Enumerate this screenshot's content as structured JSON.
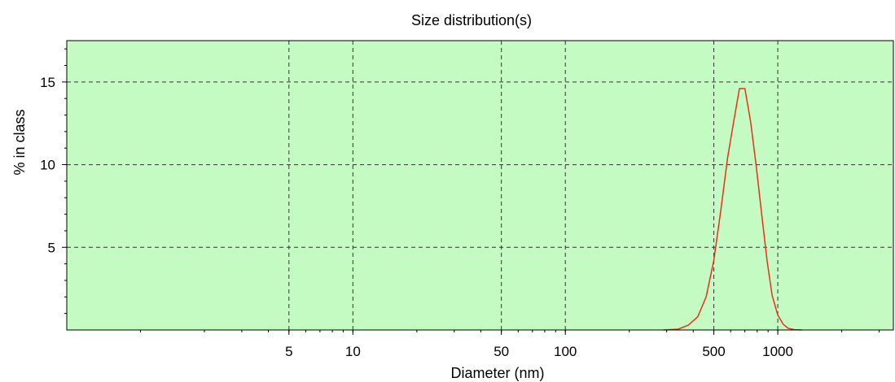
{
  "chart_data": {
    "type": "line",
    "title": "Size distribution(s)",
    "xlabel": "Diameter (nm)",
    "ylabel": "% in class",
    "x_scale": "log",
    "xlim": [
      0.45,
      3500
    ],
    "ylim": [
      0,
      17.5
    ],
    "x_ticks": [
      {
        "value": 5,
        "label": "5"
      },
      {
        "value": 10,
        "label": "10"
      },
      {
        "value": 50,
        "label": "50"
      },
      {
        "value": 100,
        "label": "100"
      },
      {
        "value": 500,
        "label": "500"
      },
      {
        "value": 1000,
        "label": "1000"
      }
    ],
    "y_ticks": [
      {
        "value": 5,
        "label": "5"
      },
      {
        "value": 10,
        "label": "10"
      },
      {
        "value": 15,
        "label": "15"
      }
    ],
    "grid": true,
    "legend": "none",
    "colors": {
      "plot_background": "#c3fbc3",
      "line": "#e8301c",
      "grid": "#333333",
      "axis": "#000000"
    },
    "series": [
      {
        "x": [
          290,
          340,
          380,
          420,
          460,
          500,
          540,
          580,
          620,
          660,
          700,
          745,
          790,
          840,
          890,
          940,
          1000,
          1060,
          1120,
          1200,
          1300
        ],
        "values": [
          0.0,
          0.05,
          0.3,
          0.8,
          2.0,
          4.2,
          7.3,
          10.4,
          12.6,
          14.6,
          14.6,
          12.6,
          10.0,
          7.0,
          4.2,
          2.1,
          0.9,
          0.35,
          0.1,
          0.02,
          0.0
        ]
      }
    ]
  }
}
